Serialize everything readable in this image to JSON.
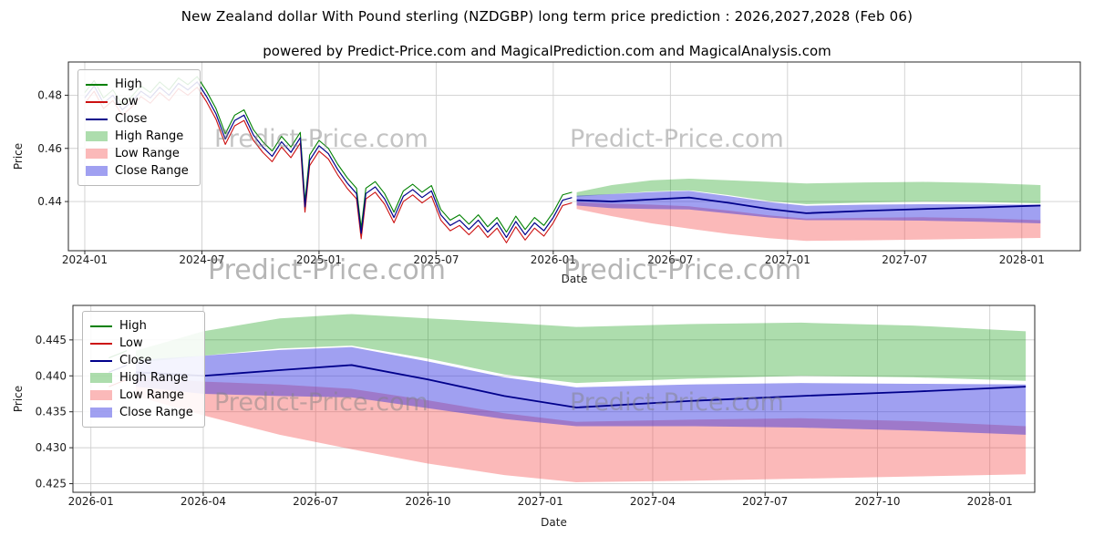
{
  "page": {
    "title": "New Zealand dollar With Pound sterling (NZDGBP) long term price prediction : 2026,2027,2028 (Feb 06)",
    "subtitle": "powered by Predict-Price.com and MagicalPrediction.com and MagicalAnalysis.com"
  },
  "watermark": {
    "text": "Predict-Price.com"
  },
  "colors": {
    "high": "#008000",
    "low": "#cc1111",
    "close": "#00008b",
    "high_range": "rgba(0,150,0,0.32)",
    "low_range": "rgba(245,70,70,0.38)",
    "close_range": "rgba(45,45,225,0.45)",
    "grid": "#cfcfcf",
    "axis": "#2a2a2a"
  },
  "legend": [
    {
      "label": "High",
      "swatch": "line",
      "color": "#008000"
    },
    {
      "label": "Low",
      "swatch": "line",
      "color": "#cc1111"
    },
    {
      "label": "Close",
      "swatch": "line",
      "color": "#00008b"
    },
    {
      "label": "High Range",
      "swatch": "patch",
      "color": "rgba(0,150,0,0.32)"
    },
    {
      "label": "Low Range",
      "swatch": "patch",
      "color": "rgba(245,70,70,0.38)"
    },
    {
      "label": "Close Range",
      "swatch": "patch",
      "color": "rgba(45,45,225,0.45)"
    }
  ],
  "chart_data": [
    {
      "type": "line",
      "name": "long-term-history-and-forecast",
      "xlabel": "Date",
      "ylabel": "Price",
      "xlim": [
        2023.93,
        2028.25
      ],
      "ylim": [
        0.4215,
        0.4925
      ],
      "grid": true,
      "x_tick_values": [
        2024.0,
        2024.5,
        2025.0,
        2025.5,
        2026.0,
        2026.5,
        2027.0,
        2027.5,
        2028.0
      ],
      "x_tick_labels": [
        "2024-01",
        "2024-07",
        "2025-01",
        "2025-07",
        "2026-01",
        "2026-07",
        "2027-01",
        "2027-07",
        "2028-01"
      ],
      "y_tick_values": [
        0.44,
        0.46,
        0.48
      ],
      "y_tick_labels": [
        "0.44",
        "0.46",
        "0.48"
      ],
      "history": {
        "x": [
          2024.0,
          2024.04,
          2024.08,
          2024.12,
          2024.16,
          2024.2,
          2024.24,
          2024.28,
          2024.32,
          2024.36,
          2024.4,
          2024.44,
          2024.48,
          2024.52,
          2024.56,
          2024.6,
          2024.64,
          2024.68,
          2024.72,
          2024.76,
          2024.8,
          2024.84,
          2024.88,
          2024.92,
          2024.94,
          2024.96,
          2025.0,
          2025.04,
          2025.08,
          2025.12,
          2025.16,
          2025.18,
          2025.2,
          2025.24,
          2025.28,
          2025.32,
          2025.36,
          2025.4,
          2025.44,
          2025.48,
          2025.52,
          2025.56,
          2025.6,
          2025.64,
          2025.68,
          2025.72,
          2025.76,
          2025.8,
          2025.84,
          2025.88,
          2025.92,
          2025.96,
          2026.0,
          2026.04,
          2026.08
        ],
        "high": [
          0.481,
          0.4855,
          0.479,
          0.482,
          0.4765,
          0.4795,
          0.4835,
          0.481,
          0.485,
          0.482,
          0.4865,
          0.484,
          0.487,
          0.4815,
          0.475,
          0.4655,
          0.4725,
          0.4745,
          0.467,
          0.4625,
          0.459,
          0.4645,
          0.4605,
          0.466,
          0.44,
          0.4575,
          0.463,
          0.46,
          0.454,
          0.449,
          0.445,
          0.43,
          0.445,
          0.4475,
          0.443,
          0.436,
          0.444,
          0.4465,
          0.4435,
          0.446,
          0.437,
          0.433,
          0.435,
          0.4315,
          0.435,
          0.4305,
          0.434,
          0.4285,
          0.4345,
          0.4295,
          0.434,
          0.431,
          0.436,
          0.4425,
          0.4435
        ],
        "low": [
          0.477,
          0.4815,
          0.475,
          0.478,
          0.4725,
          0.4755,
          0.4795,
          0.477,
          0.481,
          0.478,
          0.4825,
          0.48,
          0.483,
          0.4775,
          0.471,
          0.4615,
          0.4685,
          0.4705,
          0.463,
          0.4585,
          0.455,
          0.4605,
          0.4565,
          0.462,
          0.436,
          0.4535,
          0.459,
          0.456,
          0.45,
          0.445,
          0.441,
          0.426,
          0.441,
          0.4435,
          0.439,
          0.432,
          0.44,
          0.4425,
          0.4395,
          0.442,
          0.433,
          0.429,
          0.431,
          0.4275,
          0.431,
          0.4265,
          0.43,
          0.4245,
          0.4305,
          0.4255,
          0.43,
          0.427,
          0.432,
          0.4385,
          0.4395
        ],
        "close": [
          0.479,
          0.4835,
          0.477,
          0.48,
          0.4745,
          0.4775,
          0.4815,
          0.479,
          0.483,
          0.48,
          0.4845,
          0.482,
          0.485,
          0.4795,
          0.473,
          0.4635,
          0.4705,
          0.4725,
          0.465,
          0.4605,
          0.457,
          0.4625,
          0.4585,
          0.464,
          0.438,
          0.4555,
          0.461,
          0.458,
          0.452,
          0.447,
          0.443,
          0.428,
          0.443,
          0.4455,
          0.441,
          0.434,
          0.442,
          0.4445,
          0.4415,
          0.444,
          0.435,
          0.431,
          0.433,
          0.4295,
          0.433,
          0.4285,
          0.432,
          0.4265,
          0.4325,
          0.4275,
          0.432,
          0.429,
          0.434,
          0.4405,
          0.4415
        ]
      },
      "forecast": {
        "x": [
          2026.1,
          2026.25,
          2026.42,
          2026.58,
          2026.75,
          2026.92,
          2027.08,
          2027.33,
          2027.58,
          2027.83,
          2028.08
        ],
        "close": [
          0.4405,
          0.44,
          0.4408,
          0.4415,
          0.4395,
          0.4372,
          0.4356,
          0.4365,
          0.4372,
          0.4378,
          0.4385
        ],
        "high_range_upper": [
          0.4435,
          0.4462,
          0.448,
          0.4486,
          0.448,
          0.4474,
          0.4468,
          0.4472,
          0.4474,
          0.447,
          0.4462
        ],
        "high_range_lower": [
          0.4418,
          0.4428,
          0.4438,
          0.4442,
          0.4424,
          0.4402,
          0.439,
          0.4396,
          0.44,
          0.4398,
          0.4393
        ],
        "close_range_upper": [
          0.4422,
          0.4428,
          0.4436,
          0.444,
          0.442,
          0.4398,
          0.4384,
          0.4388,
          0.439,
          0.4389,
          0.4388
        ],
        "close_range_lower": [
          0.4385,
          0.4375,
          0.4372,
          0.437,
          0.4355,
          0.434,
          0.433,
          0.433,
          0.4328,
          0.4324,
          0.4318
        ],
        "low_range_upper": [
          0.4398,
          0.4392,
          0.4388,
          0.4382,
          0.4366,
          0.4348,
          0.4336,
          0.4339,
          0.4341,
          0.4337,
          0.433
        ],
        "low_range_lower": [
          0.4372,
          0.4345,
          0.4318,
          0.4298,
          0.4278,
          0.4262,
          0.4252,
          0.4254,
          0.4257,
          0.426,
          0.4263
        ]
      }
    },
    {
      "type": "line",
      "name": "forecast-detail-2026-2028",
      "xlabel": "Date",
      "ylabel": "Price",
      "xlim": [
        2025.96,
        2028.1
      ],
      "ylim": [
        0.4238,
        0.4498
      ],
      "grid": true,
      "x_tick_values": [
        2026.0,
        2026.25,
        2026.5,
        2026.75,
        2027.0,
        2027.25,
        2027.5,
        2027.75,
        2028.0
      ],
      "x_tick_labels": [
        "2026-01",
        "2026-04",
        "2026-07",
        "2026-10",
        "2027-01",
        "2027-04",
        "2027-07",
        "2027-10",
        "2028-01"
      ],
      "y_tick_values": [
        0.425,
        0.43,
        0.435,
        0.44,
        0.445
      ],
      "y_tick_labels": [
        "0.425",
        "0.430",
        "0.435",
        "0.440",
        "0.445"
      ],
      "history": {
        "x": [
          2026.04,
          2026.08
        ],
        "high": [
          0.4425,
          0.4435
        ],
        "low": [
          0.4385,
          0.4395
        ],
        "close": [
          0.4405,
          0.4415
        ]
      },
      "forecast": {
        "x": [
          2026.1,
          2026.25,
          2026.42,
          2026.58,
          2026.75,
          2026.92,
          2027.08,
          2027.33,
          2027.58,
          2027.83,
          2028.08
        ],
        "close": [
          0.4405,
          0.44,
          0.4408,
          0.4415,
          0.4395,
          0.4372,
          0.4356,
          0.4365,
          0.4372,
          0.4378,
          0.4385
        ],
        "high_range_upper": [
          0.4435,
          0.4462,
          0.448,
          0.4486,
          0.448,
          0.4474,
          0.4468,
          0.4472,
          0.4474,
          0.447,
          0.4462
        ],
        "high_range_lower": [
          0.4418,
          0.4428,
          0.4438,
          0.4442,
          0.4424,
          0.4402,
          0.439,
          0.4396,
          0.44,
          0.4398,
          0.4393
        ],
        "close_range_upper": [
          0.4422,
          0.4428,
          0.4436,
          0.444,
          0.442,
          0.4398,
          0.4384,
          0.4388,
          0.439,
          0.4389,
          0.4388
        ],
        "close_range_lower": [
          0.4385,
          0.4375,
          0.4372,
          0.437,
          0.4355,
          0.434,
          0.433,
          0.433,
          0.4328,
          0.4324,
          0.4318
        ],
        "low_range_upper": [
          0.4398,
          0.4392,
          0.4388,
          0.4382,
          0.4366,
          0.4348,
          0.4336,
          0.4339,
          0.4341,
          0.4337,
          0.433
        ],
        "low_range_lower": [
          0.4372,
          0.4345,
          0.4318,
          0.4298,
          0.4278,
          0.4262,
          0.4252,
          0.4254,
          0.4257,
          0.426,
          0.4263
        ]
      }
    }
  ]
}
